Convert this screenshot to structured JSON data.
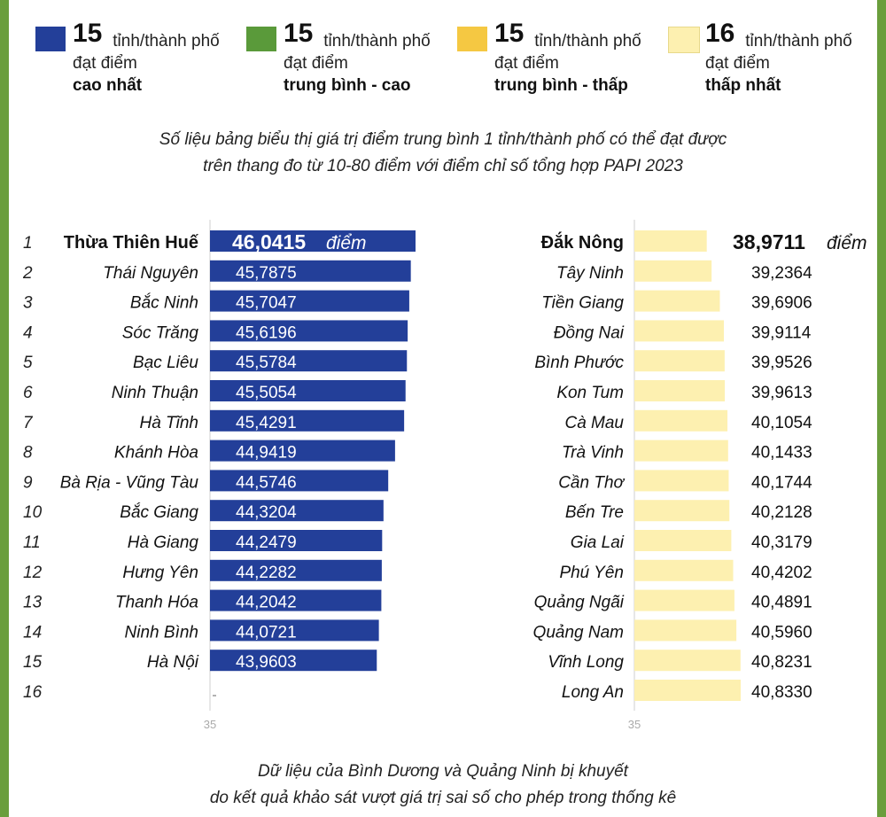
{
  "legend": [
    {
      "count": "15",
      "unit": "tỉnh/thành phố",
      "line2": "đạt điểm",
      "category": "cao nhất",
      "color": "#233f99"
    },
    {
      "count": "15",
      "unit": "tỉnh/thành phố",
      "line2": "đạt điểm",
      "category": "trung bình - cao",
      "color": "#5a9a3a"
    },
    {
      "count": "15",
      "unit": "tỉnh/thành phố",
      "line2": "đạt điểm",
      "category": "trung bình - thấp",
      "color": "#f5c842"
    },
    {
      "count": "16",
      "unit": "tỉnh/thành phố",
      "line2": "đạt điểm",
      "category": "thấp nhất",
      "color": "#fdf0b0"
    }
  ],
  "note": {
    "line1": "Số liệu bảng biểu thị giá trị điểm trung bình 1 tỉnh/thành phố có thể đạt được",
    "line2": "trên thang đo từ 10-80 điểm với điểm chỉ số tổng hợp PAPI 2023"
  },
  "footer": {
    "line1": "Dữ liệu của Bình Dương và Quảng Ninh bị khuyết",
    "line2": "do kết quả khảo sát vượt giá trị sai số cho phép trong thống kê"
  },
  "chart_data": [
    {
      "type": "bar",
      "orientation": "horizontal",
      "group": "cao nhất",
      "color": "#233f99",
      "ranks": [
        "1",
        "2",
        "3",
        "4",
        "5",
        "6",
        "7",
        "8",
        "9",
        "10",
        "11",
        "12",
        "13",
        "14",
        "15",
        "16"
      ],
      "categories": [
        "Thừa Thiên Huế",
        "Thái Nguyên",
        "Bắc Ninh",
        "Sóc Trăng",
        "Bạc Liêu",
        "Ninh Thuận",
        "Hà Tĩnh",
        "Khánh Hòa",
        "Bà Rịa - Vũng Tàu",
        "Bắc Giang",
        "Hà Giang",
        "Hưng Yên",
        "Thanh Hóa",
        "Ninh Bình",
        "Hà Nội"
      ],
      "values": [
        46.0415,
        45.7875,
        45.7047,
        45.6196,
        45.5784,
        45.5054,
        45.4291,
        44.9419,
        44.5746,
        44.3204,
        44.2479,
        44.2282,
        44.2042,
        44.0721,
        43.9603
      ],
      "value_labels": [
        "46,0415",
        "45,7875",
        "45,7047",
        "45,6196",
        "45,5784",
        "45,5054",
        "45,4291",
        "44,9419",
        "44,5746",
        "44,3204",
        "44,2479",
        "44,2282",
        "44,2042",
        "44,0721",
        "43,9603"
      ],
      "unit_label": "điểm",
      "axis_start": 35,
      "axis_label": "35"
    },
    {
      "type": "bar",
      "orientation": "horizontal",
      "group": "thấp nhất",
      "color": "#fdf0b0",
      "categories": [
        "Đắk Nông",
        "Tây Ninh",
        "Tiền Giang",
        "Đồng Nai",
        "Bình Phước",
        "Kon Tum",
        "Cà Mau",
        "Trà Vinh",
        "Cần Thơ",
        "Bến Tre",
        "Gia Lai",
        "Phú Yên",
        "Quảng Ngãi",
        "Quảng Nam",
        "Vĩnh Long",
        "Long An"
      ],
      "values": [
        38.9711,
        39.2364,
        39.6906,
        39.9114,
        39.9526,
        39.9613,
        40.1054,
        40.1433,
        40.1744,
        40.2128,
        40.3179,
        40.4202,
        40.4891,
        40.596,
        40.8231,
        40.833
      ],
      "value_labels": [
        "38,9711",
        "39,2364",
        "39,6906",
        "39,9114",
        "39,9526",
        "39,9613",
        "40,1054",
        "40,1433",
        "40,1744",
        "40,2128",
        "40,3179",
        "40,4202",
        "40,4891",
        "40,5960",
        "40,8231",
        "40,8330"
      ],
      "unit_label": "điểm",
      "axis_start": 35,
      "axis_label": "35"
    }
  ]
}
